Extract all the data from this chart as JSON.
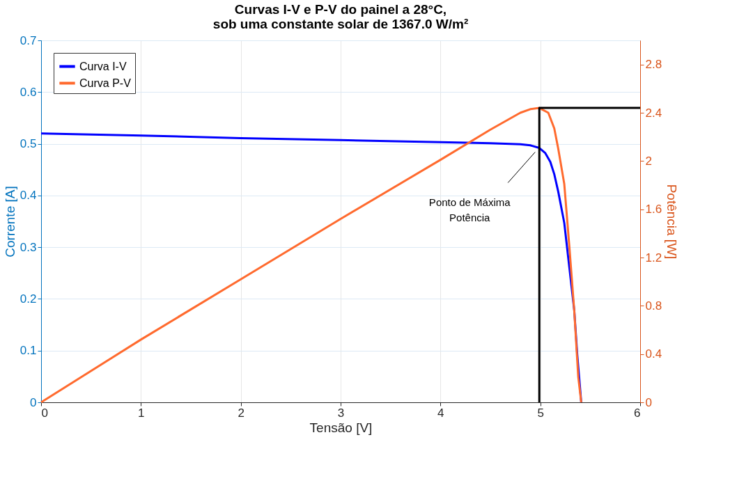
{
  "chart_data": {
    "type": "line",
    "title": "Curvas I-V e P-V do painel a 28°C,\nsob uma constante solar de 1367.0 W/m²",
    "xlabel": "Tensão [V]",
    "ylabel": "Corrente [A]",
    "y2label": "Potência [W]",
    "xlim": [
      0,
      6
    ],
    "xticks": [
      0,
      1,
      2,
      3,
      4,
      5,
      6
    ],
    "ylim": [
      0,
      0.7
    ],
    "yticks": [
      0,
      0.1,
      0.2,
      0.3,
      0.4,
      0.5,
      0.6,
      0.7
    ],
    "y2lim": [
      0,
      3
    ],
    "y2ticks": [
      0,
      0.4,
      0.8,
      1.2,
      1.6,
      2,
      2.4,
      2.8
    ],
    "grid": true,
    "legend": "top left",
    "line_style": "solid",
    "marker": "none",
    "series": [
      {
        "name": "Curva I-V",
        "color": "#0000ff",
        "x": [
          0,
          1,
          2,
          3,
          4,
          4.5,
          4.8,
          4.9,
          4.99,
          5.05,
          5.1,
          5.14,
          5.18,
          5.24,
          5.29,
          5.34,
          5.37,
          5.41
        ],
        "values": [
          0.52,
          0.516,
          0.511,
          0.507,
          0.503,
          0.501,
          0.499,
          0.497,
          0.492,
          0.482,
          0.465,
          0.441,
          0.407,
          0.347,
          0.262,
          0.178,
          0.092,
          0
        ]
      },
      {
        "name": "Curva P-V",
        "color": "#ff6a2e",
        "axis": "y2",
        "x": [
          0,
          1,
          2,
          3,
          4,
          4.5,
          4.8,
          4.9,
          4.99,
          5.08,
          5.14,
          5.18,
          5.24,
          5.29,
          5.34,
          5.38,
          5.41
        ],
        "values": [
          0,
          0.52,
          1.02,
          1.52,
          2.01,
          2.26,
          2.4,
          2.43,
          2.44,
          2.4,
          2.27,
          2.1,
          1.81,
          1.3,
          0.76,
          0.21,
          0
        ]
      },
      {
        "color": "#000000",
        "axis": "y2",
        "x": [
          4.99,
          4.99,
          6
        ],
        "values": [
          0,
          2.44,
          2.44
        ]
      }
    ],
    "annotations": [
      {
        "text": "Ponto de Máxima Potência",
        "x": 4.99,
        "y": 0.492
      }
    ]
  }
}
